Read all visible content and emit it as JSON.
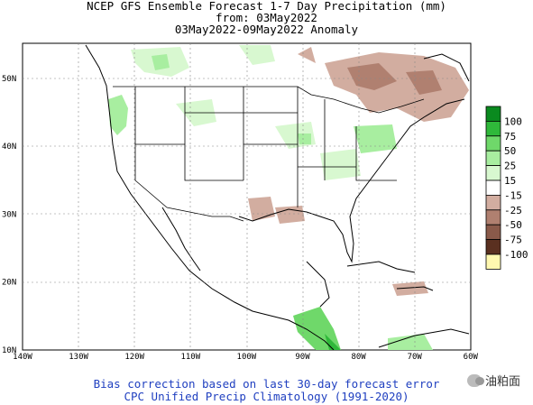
{
  "header": {
    "line1": "NCEP GFS Ensemble Forecast 1-7 Day Precipitation (mm)",
    "line2": "from: 03May2022",
    "line3": "03May2022-09May2022 Anomaly"
  },
  "map": {
    "lon_ticks": [
      "140W",
      "130W",
      "120W",
      "110W",
      "100W",
      "90W",
      "80W",
      "70W",
      "60W"
    ],
    "lat_ticks": [
      "10N",
      "20N",
      "30N",
      "40N",
      "50N"
    ]
  },
  "legend": {
    "labels": [
      "100",
      "75",
      "50",
      "25",
      "15",
      "-15",
      "-25",
      "-50",
      "-75",
      "-100"
    ],
    "colors": [
      "#0a8a1f",
      "#2fb83a",
      "#6fd86a",
      "#a8eea0",
      "#d8f8d0",
      "#ffffff",
      "#d2ada0",
      "#b08070",
      "#8a5a4a",
      "#5a3020",
      "#fff8b0"
    ]
  },
  "footer": {
    "line1": "Bias correction based on last 30-day forecast error",
    "line2": "CPC Unified Precip Climatology (1991-2020)"
  },
  "watermark": {
    "text": "油粕面"
  }
}
